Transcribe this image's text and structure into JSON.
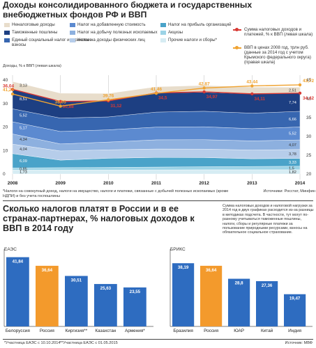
{
  "top": {
    "title": "Доходы консолидированного бюджета и государственных внебюджетных фондов РФ и ВВП",
    "legend": [
      {
        "label": "Неналоговые доходы",
        "color": "#e8ddcb"
      },
      {
        "label": "Таможенные пошлины",
        "color": "#1d3f82"
      },
      {
        "label": "Единый социальный налог и страховые взносы",
        "color": "#3766b0"
      },
      {
        "label": "Налог на добавленную стоимость",
        "color": "#5c8ad0"
      },
      {
        "label": "Налог на добычу полезных ископаемых",
        "color": "#8db0df"
      },
      {
        "label": "Налог на доходы физических лиц",
        "color": "#b6cdea"
      },
      {
        "label": "Налог на прибыль организаций",
        "color": "#4aa3c9"
      },
      {
        "label": "Акцизы",
        "color": "#9cd3e6"
      },
      {
        "label": "Прочие налоги и сборы*",
        "color": "#d6ecf3"
      }
    ],
    "line_legend": {
      "red": "Сумма налоговых доходов и платежей, % к ВВП (левая шкала)",
      "orange": "ВВП в ценах 2008 год, трлн руб. (данные за 2014 год с учетом Крымского федерального округа) (правая шкала)"
    },
    "left_axis_label": "Доходы, % к ВВП (левая шкала)",
    "footnote": "*Налоги на совокупный доход, налоги на имущество, налоги и платежи, связанные с добычей полезных ископаемых (кроме НДПИ) и без учета госпошлины",
    "source": "Источники: Росстат, Минфин",
    "colors": {
      "red": "#d83a34",
      "orange": "#f0a331"
    }
  },
  "bottom": {
    "title": "Сколько налогов платят в России и в ее странах-партнерах, % налоговых доходов к ВВП в 2014 году",
    "note": "Сумма налоговых доходов и налоговой нагрузки за 2014 год в двух графиках расходится из-за разницы в методиках подсчета. В частности, тут могут по-разному учитываться таможенные пошлины, налоги, сборы и регулярные платежи за пользование природными ресурсами, взносы на обязательное социальное страхование.",
    "left_group_label": "ЕАЭС",
    "right_group_label": "БРИКС",
    "footnote1": "*Участница ЕАЭС с 10.10.2014",
    "footnote2": "**Участница ЕАЭС с 01.05.2015",
    "source": "Источник: МВФ",
    "colors": {
      "blue": "#2e6cc0",
      "orange": "#f39a2c"
    }
  },
  "chart_data": [
    {
      "type": "area",
      "title": "Доходы консолидированного бюджета и государственных внебюджетных фондов РФ и ВВП",
      "x": [
        "2008",
        "2009",
        "2010",
        "2011",
        "2012",
        "2013",
        "2014"
      ],
      "ylabel": "Доходы, % к ВВП (левая шкала)",
      "ylim": [
        0,
        40
      ],
      "yticks": [
        0,
        10,
        20,
        30,
        40
      ],
      "right_ylim": [
        20,
        45
      ],
      "right_yticks": [
        20,
        25,
        30,
        35,
        40,
        45
      ],
      "stack_labels_2008": [
        "1,73",
        "0,85",
        "6,09",
        "4,04",
        "4,34",
        "5,17",
        "5,52",
        "8,51",
        "3,13"
      ],
      "stack_labels_2014": [
        "1,82",
        "1,5",
        "3,33",
        "3,78",
        "4,07",
        "5,52",
        "6,66",
        "7,74",
        "2,51"
      ],
      "series": [
        {
          "name": "Прочие налоги и сборы*",
          "values": [
            1.73,
            1.7,
            1.7,
            1.75,
            1.8,
            1.8,
            1.82
          ]
        },
        {
          "name": "Акцизы",
          "values": [
            0.85,
            1.0,
            1.1,
            1.2,
            1.3,
            1.4,
            1.5
          ]
        },
        {
          "name": "Налог на прибыль организаций",
          "values": [
            6.09,
            3.2,
            3.9,
            4.1,
            3.9,
            3.3,
            3.33
          ]
        },
        {
          "name": "Налог на доходы физических лиц",
          "values": [
            4.04,
            3.9,
            3.6,
            3.6,
            3.6,
            3.7,
            3.78
          ]
        },
        {
          "name": "Налог на добычу полезных ископаемых",
          "values": [
            4.34,
            3.0,
            3.3,
            3.9,
            4.0,
            3.9,
            4.07
          ]
        },
        {
          "name": "Налог на добавленную стоимость",
          "values": [
            5.17,
            5.3,
            5.2,
            5.4,
            5.5,
            5.2,
            5.52
          ]
        },
        {
          "name": "Единый социальный налог и страховые взносы",
          "values": [
            5.52,
            5.7,
            5.5,
            6.4,
            6.6,
            6.6,
            6.66
          ]
        },
        {
          "name": "Таможенные пошлины",
          "values": [
            8.51,
            7.1,
            6.8,
            8.2,
            8.1,
            8.2,
            7.74
          ]
        },
        {
          "name": "Неналоговые доходы",
          "values": [
            3.13,
            3.5,
            3.2,
            2.6,
            2.9,
            2.9,
            2.51
          ]
        },
        {
          "name": "Сумма налоговых доходов и платежей, % к ВВП (левая шкала)",
          "values": [
            36.04,
            30.88,
            31.12,
            34.5,
            34.97,
            34.11,
            34.42
          ]
        },
        {
          "name": "ВВП в ценах 2008 год, трлн руб. (данные за 2014 год с учетом Крымского федерального округа) (правая шкала)",
          "values": [
            41.28,
            38.05,
            39.76,
            41.46,
            42.87,
            43.44,
            43.72
          ]
        }
      ]
    },
    {
      "type": "bar",
      "title": "ЕАЭС",
      "categories": [
        "Белоруссия",
        "Россия",
        "Киргизия**",
        "Казахстан",
        "Армения*"
      ],
      "values": [
        41.84,
        36.64,
        30.51,
        25.63,
        23.55
      ],
      "ylim": [
        0,
        45
      ]
    },
    {
      "type": "bar",
      "title": "БРИКС",
      "categories": [
        "Бразилия",
        "Россия",
        "ЮАР",
        "Китай",
        "Индия"
      ],
      "values": [
        38.19,
        36.64,
        28.8,
        27.36,
        19.47
      ],
      "ylim": [
        0,
        45
      ]
    }
  ]
}
